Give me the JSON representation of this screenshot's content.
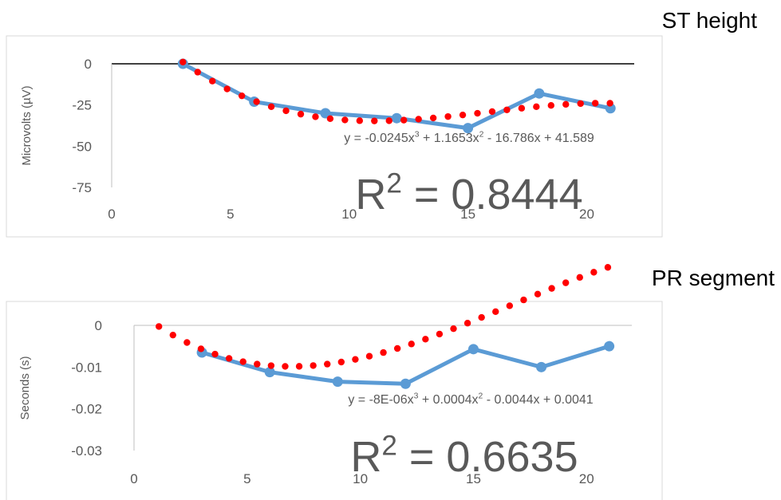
{
  "chart_data": [
    {
      "type": "line",
      "title": "ST height",
      "ylabel": "Microvolts (µV)",
      "xlabel": "",
      "xlim": [
        0,
        22
      ],
      "ylim": [
        -75,
        0
      ],
      "xticks": [
        0,
        5,
        10,
        15,
        20
      ],
      "yticks": [
        0,
        -25,
        -50,
        -75
      ],
      "ytick_labels": [
        "0",
        "-25",
        "-50",
        "-75"
      ],
      "grid": false,
      "series": [
        {
          "x": [
            3,
            6,
            9,
            12,
            15,
            18,
            21
          ],
          "values": [
            0,
            -23,
            -30,
            -33,
            -39,
            -18,
            -27
          ],
          "color": "#5b9bd5"
        }
      ],
      "trendline": {
        "kind": "polynomial-3",
        "coefficients": [
          -0.0245,
          1.1653,
          -16.786,
          41.589
        ],
        "x_range": [
          3,
          21
        ],
        "color": "#ff0000",
        "equation_parts": [
          "y = -0.0245x",
          "3",
          " + 1.1653x",
          "2",
          " - 16.786x + 41.589"
        ],
        "r2_parts": [
          "R",
          "2",
          " = 0.8444"
        ]
      }
    },
    {
      "type": "line",
      "title": "PR segment",
      "ylabel": "Seconds (s)",
      "xlabel": "",
      "xlim": [
        0,
        22
      ],
      "ylim": [
        -0.03,
        0
      ],
      "xticks": [
        0,
        5,
        10,
        15,
        20
      ],
      "yticks": [
        0,
        -0.01,
        -0.02,
        -0.03
      ],
      "ytick_labels": [
        "0",
        "-0.01",
        "-0.02",
        "-0.03"
      ],
      "grid": false,
      "series": [
        {
          "x": [
            3,
            6,
            9,
            12,
            15,
            18,
            21
          ],
          "values": [
            -0.0065,
            -0.0112,
            -0.0135,
            -0.014,
            -0.0057,
            -0.01,
            -0.005
          ],
          "color": "#5b9bd5"
        }
      ],
      "trendline": {
        "kind": "polynomial-3",
        "coefficients": [
          -8e-06,
          0.0004,
          -0.0044,
          0.0041
        ],
        "x_range": [
          1.1,
          21
        ],
        "color": "#ff0000",
        "equation_parts": [
          "y = -8E-06x",
          "3",
          " + 0.0004x",
          "2",
          " - 0.0044x + 0.0041"
        ],
        "r2_parts": [
          "R",
          "2",
          " = 0.6635"
        ]
      }
    }
  ]
}
